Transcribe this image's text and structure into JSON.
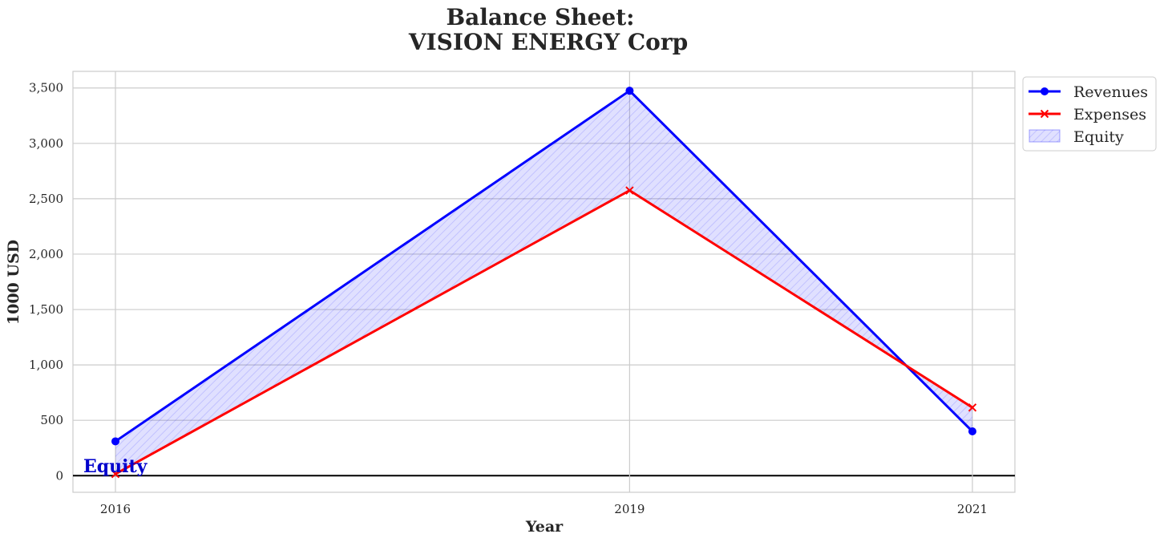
{
  "chart_data": {
    "type": "line",
    "title_line1": "Balance Sheet:",
    "title_line2": "VISION ENERGY Corp",
    "xlabel": "Year",
    "ylabel": "1000 USD",
    "x": [
      "2016",
      "2019",
      "2021"
    ],
    "ylim": [
      -150,
      3650
    ],
    "yticks": [
      0,
      500,
      1000,
      1500,
      2000,
      2500,
      3000,
      3500
    ],
    "ytick_labels": [
      "0",
      "500",
      "1,000",
      "1,500",
      "2,000",
      "2,500",
      "3,000",
      "3,500"
    ],
    "grid": true,
    "legend_position": "outside-top-right",
    "series": [
      {
        "name": "Revenues",
        "values": [
          310,
          3475,
          400
        ],
        "color": "#0000ff",
        "marker": "circle"
      },
      {
        "name": "Expenses",
        "values": [
          15,
          2575,
          615
        ],
        "color": "#ff0000",
        "marker": "x"
      }
    ],
    "fill": {
      "name": "Equity",
      "between": [
        "Revenues",
        "Expenses"
      ],
      "color": "#0000ff"
    },
    "annotation": {
      "text": "Equity",
      "x": "2016",
      "y": 160,
      "color": "#0000cc"
    }
  }
}
